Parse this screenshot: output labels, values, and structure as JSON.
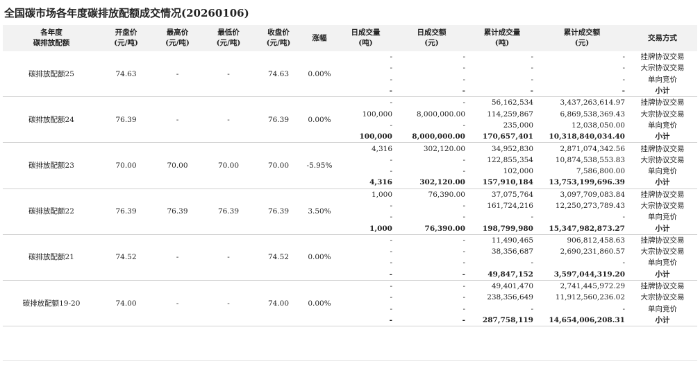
{
  "title": "全国碳市场各年度碳排放配额成交情况(20260106)",
  "table": {
    "header": [
      [
        "各年度",
        "碳排放配额"
      ],
      [
        "开盘价",
        "(元/吨)"
      ],
      [
        "最高价",
        "(元/吨)"
      ],
      [
        "最低价",
        "(元/吨)"
      ],
      [
        "收盘价",
        "(元/吨)"
      ],
      [
        "涨幅"
      ],
      [
        "日成交量",
        "(吨)"
      ],
      [
        "日成交额",
        "(元)"
      ],
      [
        "累计成交量",
        "(吨)"
      ],
      [
        "累计成交额",
        "(元)"
      ],
      [
        "交易方式"
      ]
    ],
    "groups": [
      {
        "name": "碳排放配额25",
        "open": "74.63",
        "high": "-",
        "low": "-",
        "close": "74.63",
        "change": "0.00%",
        "rows": [
          [
            "-",
            "-",
            "-",
            "-",
            "挂牌协议交易"
          ],
          [
            "-",
            "-",
            "-",
            "-",
            "大宗协议交易"
          ],
          [
            "-",
            "-",
            "-",
            "-",
            "单向竞价"
          ],
          [
            "-",
            "-",
            "-",
            "-",
            "小计"
          ]
        ]
      },
      {
        "name": "碳排放配额24",
        "open": "76.39",
        "high": "-",
        "low": "-",
        "close": "76.39",
        "change": "0.00%",
        "rows": [
          [
            "-",
            "-",
            "56,162,534",
            "3,437,263,614.97",
            "挂牌协议交易"
          ],
          [
            "100,000",
            "8,000,000.00",
            "114,259,867",
            "6,869,538,369.43",
            "大宗协议交易"
          ],
          [
            "-",
            "-",
            "235,000",
            "12,038,050.00",
            "单向竞价"
          ],
          [
            "100,000",
            "8,000,000.00",
            "170,657,401",
            "10,318,840,034.40",
            "小计"
          ]
        ]
      },
      {
        "name": "碳排放配额23",
        "open": "70.00",
        "high": "70.00",
        "low": "70.00",
        "close": "70.00",
        "change": "-5.95%",
        "rows": [
          [
            "4,316",
            "302,120.00",
            "34,952,830",
            "2,871,074,342.56",
            "挂牌协议交易"
          ],
          [
            "-",
            "-",
            "122,855,354",
            "10,874,538,553.83",
            "大宗协议交易"
          ],
          [
            "-",
            "-",
            "102,000",
            "7,586,800.00",
            "单向竞价"
          ],
          [
            "4,316",
            "302,120.00",
            "157,910,184",
            "13,753,199,696.39",
            "小计"
          ]
        ]
      },
      {
        "name": "碳排放配额22",
        "open": "76.39",
        "high": "76.39",
        "low": "76.39",
        "close": "76.39",
        "change": "3.50%",
        "rows": [
          [
            "1,000",
            "76,390.00",
            "37,075,764",
            "3,097,709,083.84",
            "挂牌协议交易"
          ],
          [
            "-",
            "-",
            "161,724,216",
            "12,250,273,789.43",
            "大宗协议交易"
          ],
          [
            "-",
            "-",
            "-",
            "-",
            "单向竞价"
          ],
          [
            "1,000",
            "76,390.00",
            "198,799,980",
            "15,347,982,873.27",
            "小计"
          ]
        ]
      },
      {
        "name": "碳排放配额21",
        "open": "74.52",
        "high": "-",
        "low": "-",
        "close": "74.52",
        "change": "0.00%",
        "rows": [
          [
            "-",
            "-",
            "11,490,465",
            "906,812,458.63",
            "挂牌协议交易"
          ],
          [
            "-",
            "-",
            "38,356,687",
            "2,690,231,860.57",
            "大宗协议交易"
          ],
          [
            "-",
            "-",
            "-",
            "-",
            "单向竞价"
          ],
          [
            "-",
            "-",
            "49,847,152",
            "3,597,044,319.20",
            "小计"
          ]
        ]
      },
      {
        "name": "碳排放配额19-20",
        "open": "74.00",
        "high": "-",
        "low": "-",
        "close": "74.00",
        "change": "0.00%",
        "rows": [
          [
            "-",
            "-",
            "49,401,470",
            "2,741,445,972.29",
            "挂牌协议交易"
          ],
          [
            "-",
            "-",
            "238,356,649",
            "11,912,560,236.02",
            "大宗协议交易"
          ],
          [
            "-",
            "-",
            "-",
            "-",
            "单向竞价"
          ],
          [
            "-",
            "-",
            "287,758,119",
            "14,654,006,208.31",
            "小计"
          ]
        ]
      }
    ]
  }
}
